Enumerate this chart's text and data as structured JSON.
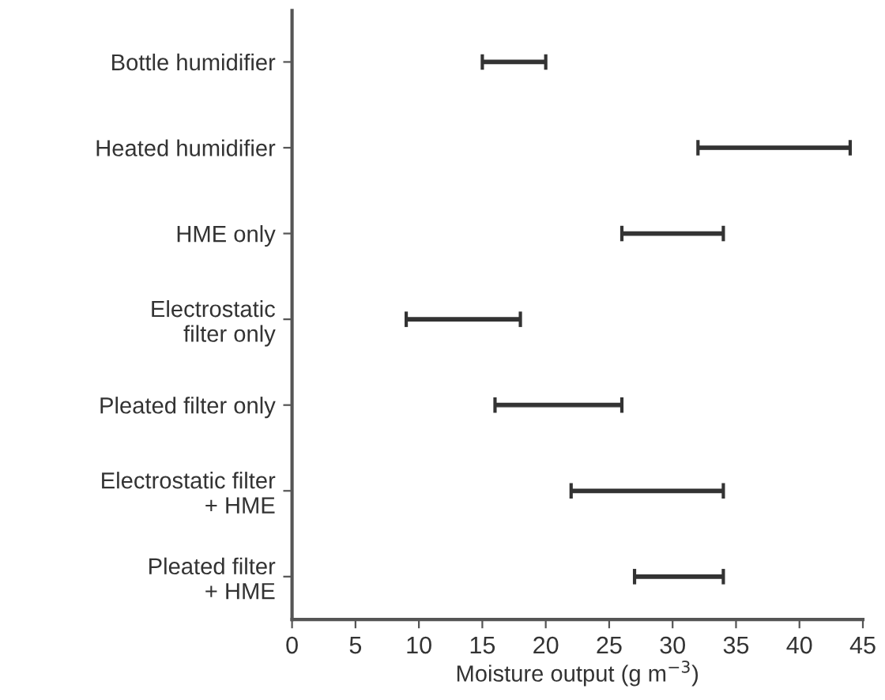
{
  "chart_data": {
    "type": "bar",
    "orientation": "horizontal",
    "categories": [
      "Bottle humidifier",
      "Heated humidifier",
      "HME only",
      "Electrostatic\nfilter only",
      "Pleated filter only",
      "Electrostatic filter\n+ HME",
      "Pleated filter\n+ HME"
    ],
    "base": [
      15,
      32,
      26,
      9,
      16,
      22,
      27
    ],
    "values": [
      5,
      12,
      8,
      9,
      10,
      12,
      7
    ],
    "color": "#333333",
    "xlabel": "Moisture output (g m$^{−3}$)",
    "xlim": [
      0,
      45
    ],
    "xticks": [
      0,
      5,
      10,
      15,
      20,
      25,
      30,
      35,
      40,
      45
    ],
    "grid": false,
    "legend": false
  }
}
